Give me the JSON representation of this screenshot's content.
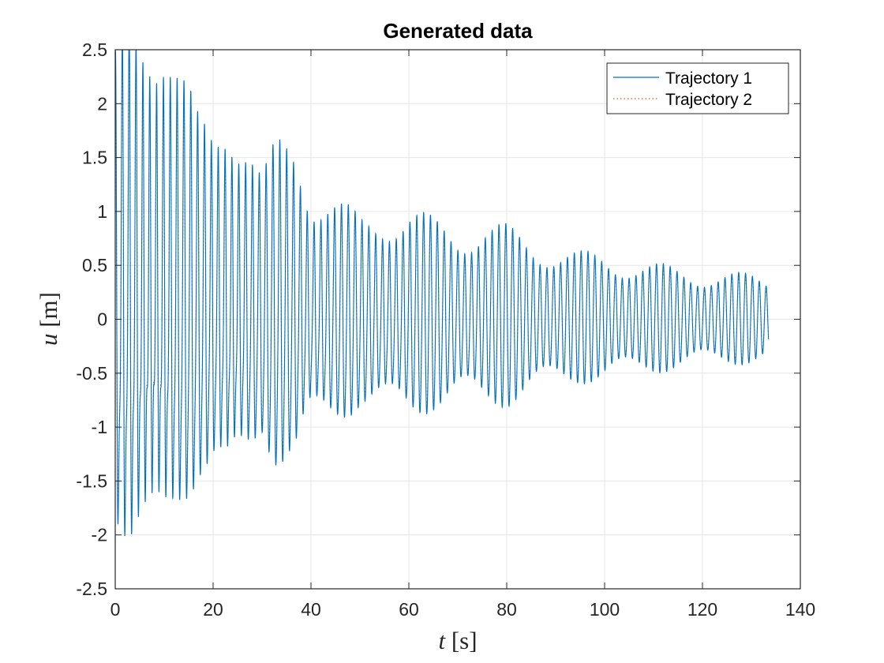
{
  "chart_data": {
    "type": "line",
    "title": "Generated data",
    "xlabel": {
      "var": "t",
      "unit": "s"
    },
    "ylabel": {
      "var": "u",
      "unit": "m"
    },
    "xlim": [
      0,
      140
    ],
    "ylim": [
      -2.5,
      2.5
    ],
    "xticks": [
      0,
      20,
      40,
      60,
      80,
      100,
      120,
      140
    ],
    "xtick_labels": [
      "0",
      "20",
      "40",
      "60",
      "80",
      "100",
      "120",
      "140"
    ],
    "yticks": [
      2.5,
      2,
      1.5,
      1,
      0.5,
      0,
      -0.5,
      -1,
      -1.5,
      -2,
      -2.5
    ],
    "ytick_labels": [
      "2.5",
      "2",
      "1.5",
      "1",
      "0.5",
      "0",
      "-0.5",
      "-1",
      "-1.5",
      "-2",
      "-2.5"
    ],
    "grid": true,
    "legend_position": "top-right",
    "series": [
      {
        "name": "Trajectory 1",
        "color": "#0072BD",
        "style": "solid",
        "t_range": [
          0,
          133.5
        ],
        "envelope_points": {
          "t": [
            0,
            3,
            7,
            10,
            13,
            17,
            20,
            23,
            27,
            30,
            33,
            37,
            40,
            45,
            50,
            55,
            60,
            65,
            70,
            75,
            80,
            85,
            90,
            95,
            100,
            105,
            110,
            115,
            120,
            125,
            130,
            133.5
          ],
          "amplitude": [
            1.9,
            2.35,
            2.45,
            2.4,
            2.0,
            1.6,
            1.6,
            1.9,
            1.6,
            1.2,
            1.5,
            1.6,
            1.2,
            1.05,
            0.9,
            1.0,
            1.0,
            0.9,
            0.85,
            0.9,
            0.85,
            0.75,
            0.68,
            0.62,
            0.6,
            0.56,
            0.52,
            0.48,
            0.45,
            0.44,
            0.42,
            0.4
          ]
        },
        "oscillation_period_s": 1.4,
        "beat_period_s": 16
      },
      {
        "name": "Trajectory 2",
        "color": "#D95319",
        "style": "dotted",
        "t_range": [
          0,
          133.5
        ],
        "envelope_points": {
          "t": [
            0,
            3,
            7,
            10,
            13,
            17,
            20,
            23,
            27,
            30,
            33,
            37,
            40,
            45,
            50,
            55,
            60,
            65,
            70,
            75,
            80,
            85,
            90,
            95,
            100,
            105,
            110,
            115,
            120,
            125,
            130,
            133.5
          ],
          "amplitude": [
            1.85,
            2.3,
            2.4,
            2.35,
            1.95,
            1.55,
            1.55,
            1.85,
            1.55,
            1.15,
            1.45,
            1.55,
            1.15,
            1.0,
            0.88,
            0.98,
            0.98,
            0.88,
            0.83,
            0.88,
            0.83,
            0.73,
            0.66,
            0.6,
            0.58,
            0.54,
            0.5,
            0.46,
            0.43,
            0.42,
            0.4,
            0.38
          ]
        },
        "oscillation_period_s": 1.4,
        "beat_period_s": 16
      }
    ],
    "colors": {
      "axis": "#262626",
      "grid": "#e6e6e6",
      "background": "#ffffff"
    }
  }
}
